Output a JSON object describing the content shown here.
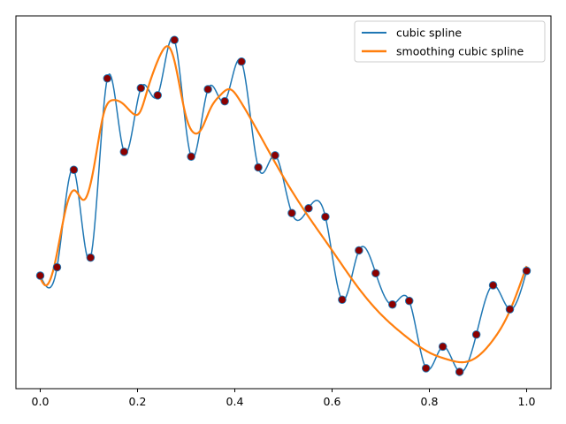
{
  "chart_data": {
    "type": "line",
    "title": "",
    "xlabel": "",
    "ylabel": "",
    "xlim": [
      -0.05,
      1.05
    ],
    "ylim": [
      -1.6,
      1.5
    ],
    "xticks": [
      0.0,
      0.2,
      0.4,
      0.6,
      0.8,
      1.0
    ],
    "xtick_labels": [
      "0.0",
      "0.2",
      "0.4",
      "0.6",
      "0.8",
      "1.0"
    ],
    "yticks_shown": false,
    "grid": false,
    "legend": {
      "position": "top-right"
    },
    "points": {
      "name": "",
      "marker_color": "#8b0000",
      "edge_color": "#1f77b4",
      "x": [
        0.0,
        0.0345,
        0.069,
        0.1034,
        0.1379,
        0.1724,
        0.2069,
        0.2414,
        0.2759,
        0.3103,
        0.3448,
        0.3793,
        0.4138,
        0.4483,
        0.4828,
        0.5172,
        0.5517,
        0.5862,
        0.6207,
        0.6552,
        0.6897,
        0.7241,
        0.7586,
        0.7931,
        0.8276,
        0.8621,
        0.8966,
        0.931,
        0.9655,
        1.0
      ],
      "y": [
        -0.66,
        -0.59,
        0.22,
        -0.51,
        0.98,
        0.37,
        0.9,
        0.84,
        1.3,
        0.33,
        0.89,
        0.79,
        1.12,
        0.24,
        0.34,
        -0.14,
        -0.1,
        -0.17,
        -0.86,
        -0.45,
        -0.64,
        -0.9,
        -0.87,
        -1.43,
        -1.25,
        -1.46,
        -1.15,
        -0.74,
        -0.94,
        -0.62
      ]
    },
    "series": [
      {
        "name": "cubic spline",
        "color": "#1f77b4",
        "width": 1.5,
        "curve": "natural-cubic-interpolating",
        "x": [
          0.0,
          0.0345,
          0.069,
          0.1034,
          0.1379,
          0.1724,
          0.2069,
          0.2414,
          0.2759,
          0.3103,
          0.3448,
          0.3793,
          0.4138,
          0.4483,
          0.4828,
          0.5172,
          0.5517,
          0.5862,
          0.6207,
          0.6552,
          0.6897,
          0.7241,
          0.7586,
          0.7931,
          0.8276,
          0.8621,
          0.8966,
          0.931,
          0.9655,
          1.0
        ],
        "y": [
          -0.66,
          -0.59,
          0.22,
          -0.51,
          0.98,
          0.37,
          0.9,
          0.84,
          1.3,
          0.33,
          0.89,
          0.79,
          1.12,
          0.24,
          0.34,
          -0.14,
          -0.1,
          -0.17,
          -0.86,
          -0.45,
          -0.64,
          -0.9,
          -0.87,
          -1.43,
          -1.25,
          -1.46,
          -1.15,
          -0.74,
          -0.94,
          -0.62
        ]
      },
      {
        "name": "smoothing cubic spline",
        "color": "#ff7f0e",
        "width": 2.2,
        "curve": "smooth",
        "x": [
          0.0,
          0.01,
          0.03,
          0.05,
          0.07,
          0.09,
          0.1,
          0.115,
          0.13,
          0.15,
          0.17,
          0.19,
          0.205,
          0.22,
          0.235,
          0.25,
          0.265,
          0.275,
          0.285,
          0.3,
          0.315,
          0.33,
          0.35,
          0.37,
          0.39,
          0.41,
          0.45,
          0.5,
          0.55,
          0.6,
          0.65,
          0.7,
          0.75,
          0.8,
          0.84,
          0.87,
          0.9,
          0.93,
          0.96,
          1.0
        ],
        "y": [
          -0.68,
          -0.74,
          -0.56,
          -0.15,
          0.05,
          -0.03,
          0.05,
          0.35,
          0.68,
          0.8,
          0.77,
          0.69,
          0.7,
          0.88,
          1.06,
          1.2,
          1.24,
          1.14,
          0.95,
          0.66,
          0.53,
          0.55,
          0.73,
          0.84,
          0.89,
          0.8,
          0.52,
          0.16,
          -0.16,
          -0.45,
          -0.74,
          -0.98,
          -1.16,
          -1.3,
          -1.36,
          -1.38,
          -1.33,
          -1.2,
          -1.0,
          -0.58
        ]
      }
    ]
  }
}
